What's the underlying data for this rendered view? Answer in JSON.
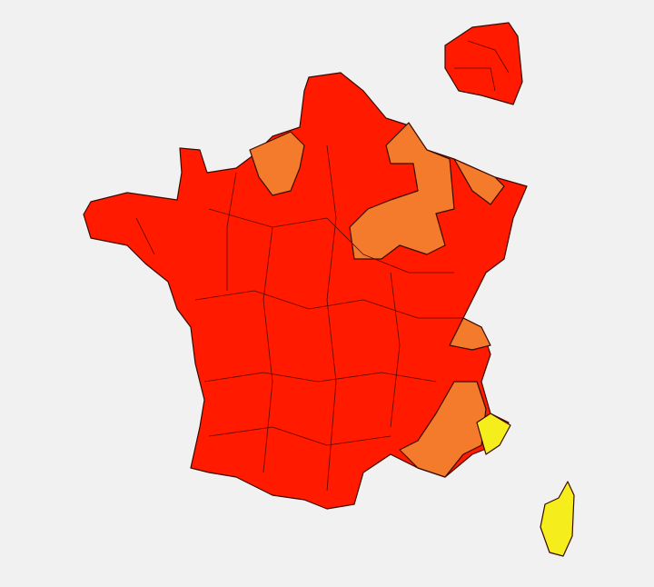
{
  "map": {
    "colors": [
      "#ff1a00",
      "#f47b2c",
      "#f6ee1c"
    ]
  }
}
